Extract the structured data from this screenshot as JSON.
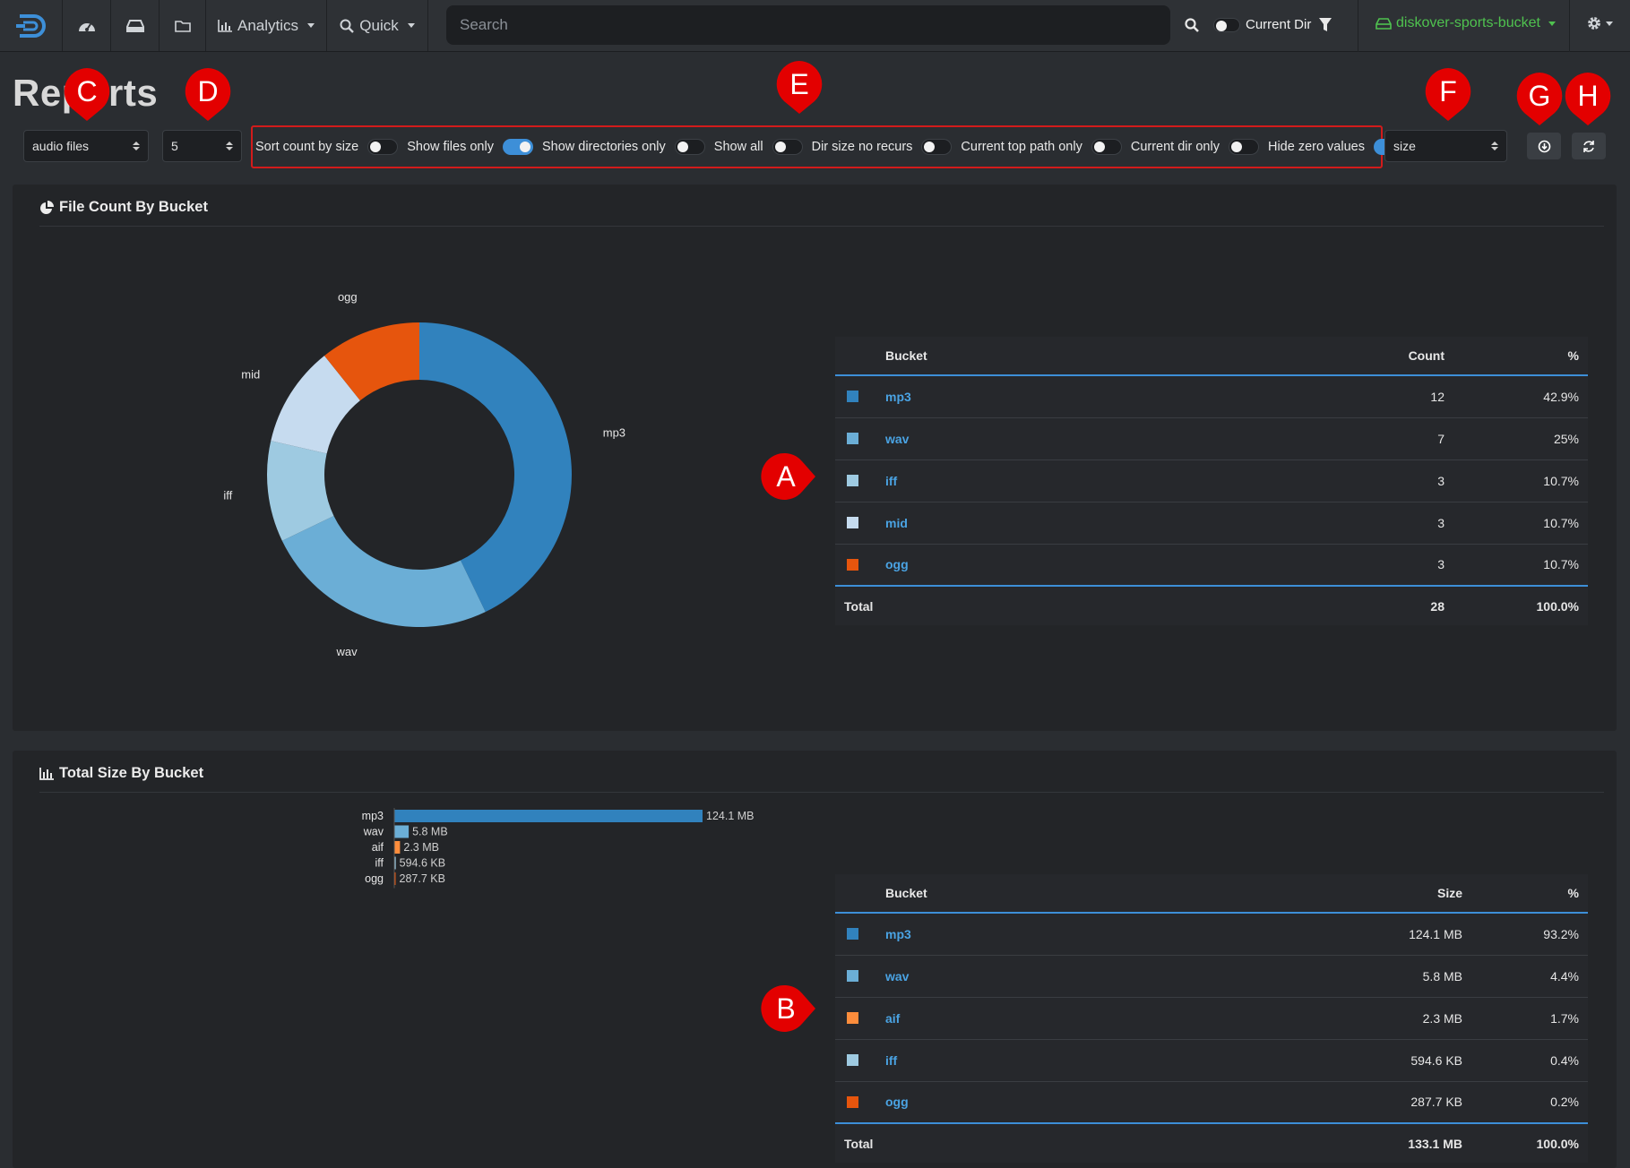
{
  "nav": {
    "analytics_label": "Analytics",
    "quick_label": "Quick",
    "search_placeholder": "Search",
    "current_dir_label": "Current Dir",
    "bucket_label": "diskover-sports-bucket"
  },
  "page": {
    "title": "Reports"
  },
  "controls": {
    "report_type": "audio files",
    "top_n": "5",
    "sort_by": "size",
    "toggles": [
      {
        "label": "Sort count by size",
        "on": false
      },
      {
        "label": "Show files only",
        "on": true
      },
      {
        "label": "Show directories only",
        "on": false
      },
      {
        "label": "Show all",
        "on": false
      },
      {
        "label": "Dir size no recurs",
        "on": false
      },
      {
        "label": "Current top path only",
        "on": false
      },
      {
        "label": "Current dir only",
        "on": false
      },
      {
        "label": "Hide zero values",
        "on": true
      }
    ]
  },
  "markers": [
    "A",
    "B",
    "C",
    "D",
    "E",
    "F",
    "G",
    "H"
  ],
  "count_panel": {
    "title": "File Count By Bucket",
    "headers": {
      "bucket": "Bucket",
      "count": "Count",
      "pct": "%"
    },
    "rows": [
      {
        "bucket": "mp3",
        "count": "12",
        "pct": "42.9%",
        "color": "#3182bd"
      },
      {
        "bucket": "wav",
        "count": "7",
        "pct": "25%",
        "color": "#6baed6"
      },
      {
        "bucket": "iff",
        "count": "3",
        "pct": "10.7%",
        "color": "#9ecae1"
      },
      {
        "bucket": "mid",
        "count": "3",
        "pct": "10.7%",
        "color": "#c6dbef"
      },
      {
        "bucket": "ogg",
        "count": "3",
        "pct": "10.7%",
        "color": "#e6550d"
      }
    ],
    "total": {
      "label": "Total",
      "count": "28",
      "pct": "100.0%"
    }
  },
  "size_panel": {
    "title": "Total Size By Bucket",
    "headers": {
      "bucket": "Bucket",
      "size": "Size",
      "pct": "%"
    },
    "rows": [
      {
        "bucket": "mp3",
        "size": "124.1 MB",
        "pct": "93.2%",
        "color": "#3182bd"
      },
      {
        "bucket": "wav",
        "size": "5.8 MB",
        "pct": "4.4%",
        "color": "#6baed6"
      },
      {
        "bucket": "aif",
        "size": "2.3 MB",
        "pct": "1.7%",
        "color": "#fd8d3c"
      },
      {
        "bucket": "iff",
        "size": "594.6 KB",
        "pct": "0.4%",
        "color": "#9ecae1"
      },
      {
        "bucket": "ogg",
        "size": "287.7 KB",
        "pct": "0.2%",
        "color": "#e6550d"
      }
    ],
    "total": {
      "label": "Total",
      "size": "133.1 MB",
      "pct": "100.0%"
    }
  },
  "chart_data": [
    {
      "type": "pie",
      "title": "File Count By Bucket",
      "categories": [
        "mp3",
        "wav",
        "iff",
        "mid",
        "ogg"
      ],
      "values": [
        12,
        7,
        3,
        3,
        3
      ],
      "colors": [
        "#3182bd",
        "#6baed6",
        "#9ecae1",
        "#c6dbef",
        "#e6550d"
      ],
      "donut": true
    },
    {
      "type": "bar",
      "orientation": "horizontal",
      "title": "Total Size By Bucket",
      "categories": [
        "mp3",
        "wav",
        "aif",
        "iff",
        "ogg"
      ],
      "values_mb": [
        124.1,
        5.8,
        2.3,
        0.5946,
        0.2877
      ],
      "value_labels": [
        "124.1 MB",
        "5.8 MB",
        "2.3 MB",
        "594.6 KB",
        "287.7 KB"
      ],
      "colors": [
        "#3182bd",
        "#6baed6",
        "#fd8d3c",
        "#9ecae1",
        "#e6550d"
      ]
    }
  ]
}
